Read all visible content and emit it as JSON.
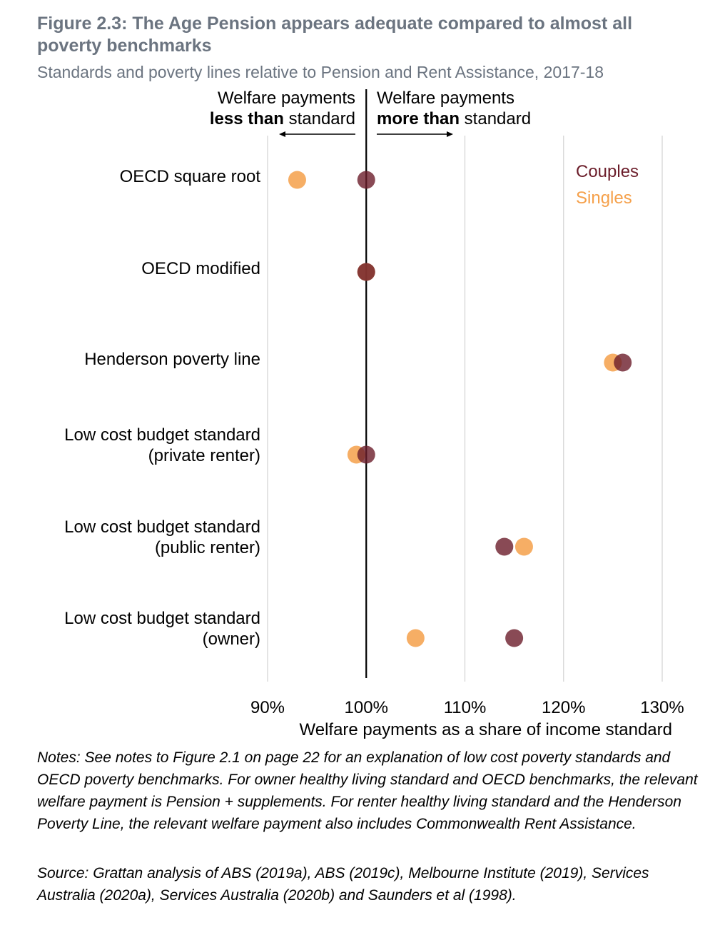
{
  "header": {
    "title": "Figure 2.3: The Age Pension appears adequate compared to almost all poverty benchmarks",
    "subtitle": "Standards and poverty lines relative to Pension and Rent Assistance, 2017-18"
  },
  "chart_data": {
    "type": "dot",
    "title": "Figure 2.3: The Age Pension appears adequate compared to almost all poverty benchmarks",
    "subtitle": "Standards and poverty lines relative to Pension and Rent Assistance, 2017-18",
    "xlabel": "Welfare payments as a share of income standard",
    "ylabel": "",
    "xlim": [
      90,
      130
    ],
    "x_ticks": [
      90,
      100,
      110,
      120,
      130
    ],
    "x_tick_labels": [
      "90%",
      "100%",
      "110%",
      "120%",
      "130%"
    ],
    "grid": "vertical",
    "reference_line": 100,
    "annotations": {
      "left_line1": "Welfare payments",
      "left_bold": "less than",
      "left_rest": " standard",
      "right_line1": "Welfare payments",
      "right_bold": "more than",
      "right_rest": " standard"
    },
    "categories": [
      [
        "OECD square root"
      ],
      [
        "OECD modified"
      ],
      [
        "Henderson poverty line"
      ],
      [
        "Low cost budget standard",
        "(private renter)"
      ],
      [
        "Low cost budget standard",
        "(public renter)"
      ],
      [
        "Low cost budget standard",
        "(owner)"
      ]
    ],
    "series": [
      {
        "name": "Couples",
        "color": "#6b1d2a",
        "values": [
          100,
          100,
          126,
          100,
          114,
          115
        ]
      },
      {
        "name": "Singles",
        "color": "#f5a04a",
        "values": [
          93,
          100,
          125,
          99,
          116,
          105
        ]
      }
    ],
    "legend_position": "top-right"
  },
  "notes": "Notes: See notes to Figure 2.1 on page 22 for an explanation of low cost poverty standards and OECD poverty benchmarks. For owner healthy living standard and OECD benchmarks, the relevant welfare payment is Pension + supplements. For renter healthy living standard and the Henderson Poverty Line, the relevant welfare payment also includes Commonwealth Rent Assistance.",
  "source": "Source: Grattan analysis of ABS (2019a), ABS (2019c), Melbourne Institute (2019), Services Australia (2020a), Services Australia (2020b) and Saunders et al (1998)."
}
